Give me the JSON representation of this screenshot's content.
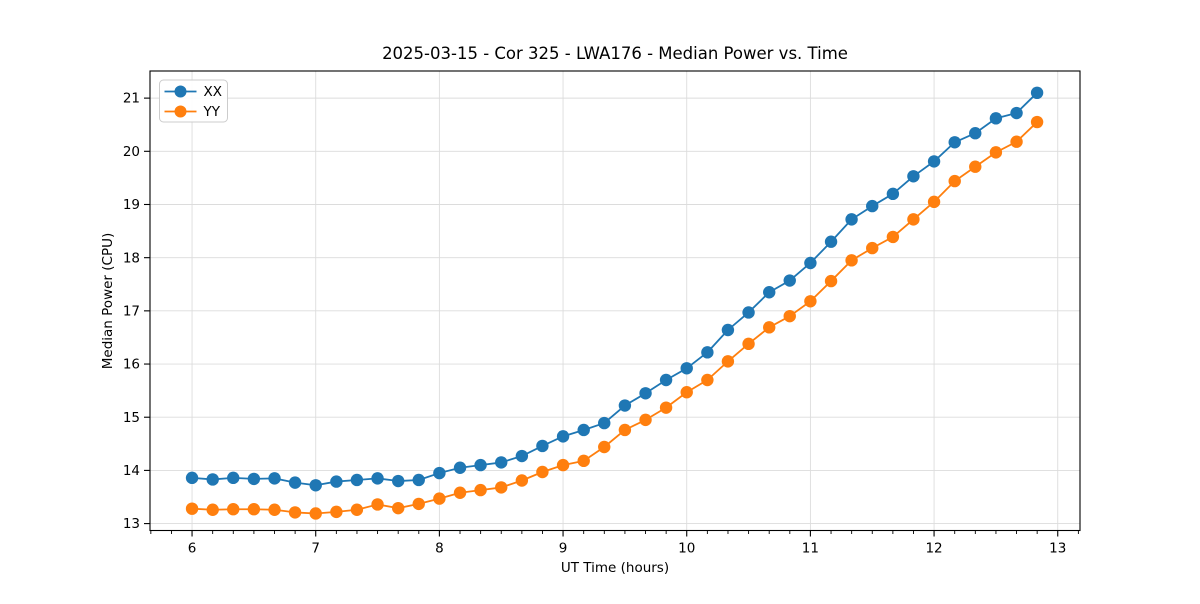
{
  "chart_data": {
    "type": "line",
    "title": "2025-03-15 - Cor 325 - LWA176 - Median Power vs. Time",
    "xlabel": "UT Time (hours)",
    "ylabel": "Median Power (CPU)",
    "xlim": [
      5.66,
      13.18
    ],
    "ylim": [
      12.87,
      21.51
    ],
    "xticks": [
      6,
      7,
      8,
      9,
      10,
      11,
      12,
      13
    ],
    "yticks": [
      13,
      14,
      15,
      16,
      17,
      18,
      19,
      20,
      21
    ],
    "x_minor_interval": 0.16667,
    "grid": true,
    "legend_position": "upper-left",
    "grid_color": "#dcdcdc",
    "spine_color": "#000000",
    "x": [
      6.0,
      6.167,
      6.333,
      6.5,
      6.667,
      6.833,
      7.0,
      7.167,
      7.333,
      7.5,
      7.667,
      7.833,
      8.0,
      8.167,
      8.333,
      8.5,
      8.667,
      8.833,
      9.0,
      9.167,
      9.333,
      9.5,
      9.667,
      9.833,
      10.0,
      10.167,
      10.333,
      10.5,
      10.667,
      10.833,
      11.0,
      11.167,
      11.333,
      11.5,
      11.667,
      11.833,
      12.0,
      12.167,
      12.333,
      12.5,
      12.667,
      12.833
    ],
    "series": [
      {
        "name": "XX",
        "color": "#1f77b4",
        "values": [
          13.86,
          13.83,
          13.86,
          13.84,
          13.85,
          13.77,
          13.72,
          13.79,
          13.82,
          13.85,
          13.8,
          13.82,
          13.95,
          14.05,
          14.1,
          14.15,
          14.27,
          14.46,
          14.64,
          14.76,
          14.89,
          15.22,
          15.45,
          15.7,
          15.92,
          16.22,
          16.64,
          16.97,
          17.35,
          17.57,
          17.9,
          18.3,
          18.72,
          18.97,
          19.2,
          19.53,
          19.81,
          20.17,
          20.34,
          20.62,
          20.72,
          21.1
        ]
      },
      {
        "name": "YY",
        "color": "#ff7f0e",
        "values": [
          13.28,
          13.26,
          13.27,
          13.27,
          13.26,
          13.21,
          13.19,
          13.22,
          13.26,
          13.36,
          13.29,
          13.37,
          13.47,
          13.58,
          13.63,
          13.68,
          13.81,
          13.97,
          14.1,
          14.18,
          14.44,
          14.76,
          14.95,
          15.18,
          15.47,
          15.7,
          16.05,
          16.38,
          16.69,
          16.9,
          17.18,
          17.56,
          17.95,
          18.18,
          18.39,
          18.72,
          19.05,
          19.44,
          19.71,
          19.98,
          20.18,
          20.55
        ]
      }
    ]
  }
}
